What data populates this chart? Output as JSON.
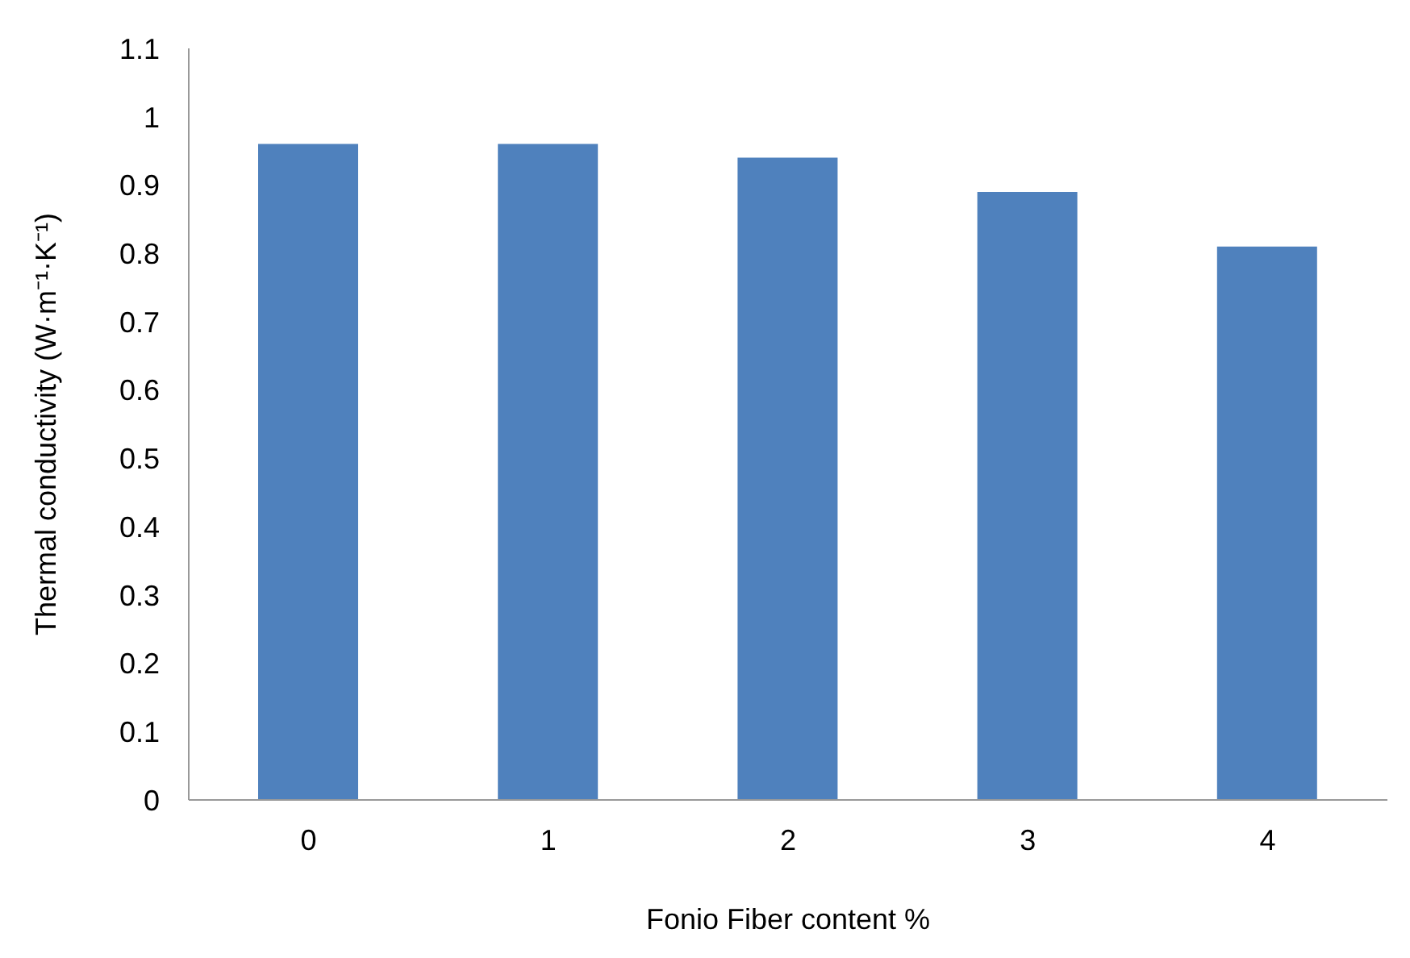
{
  "chart_data": {
    "type": "bar",
    "xlabel": "Fonio Fiber content %",
    "ylabel": "Thermal conductivity (W·m⁻¹·K⁻¹)",
    "categories": [
      "0",
      "1",
      "2",
      "3",
      "4"
    ],
    "values": [
      0.96,
      0.96,
      0.94,
      0.89,
      0.81
    ],
    "color": "#4f81bd",
    "ylim": [
      0,
      1.1
    ],
    "yticks": [
      0,
      0.1,
      0.2,
      0.3,
      0.4,
      0.5,
      0.6,
      0.7,
      0.8,
      0.9,
      1,
      1.1
    ],
    "grid": false
  }
}
